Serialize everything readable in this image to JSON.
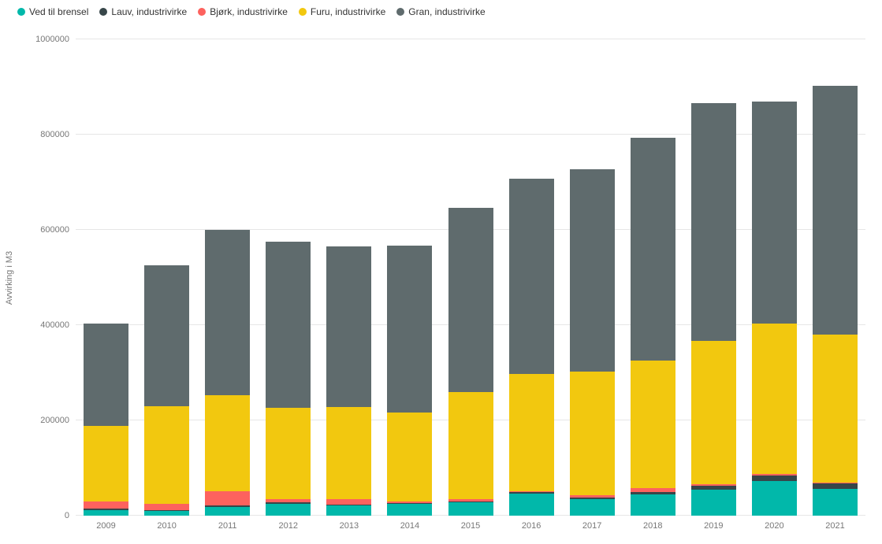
{
  "chart_data": {
    "type": "bar",
    "stacked": true,
    "title": "",
    "xlabel": "",
    "ylabel": "Avvirking i M3",
    "ylim": [
      0,
      1000000
    ],
    "yticks": [
      0,
      200000,
      400000,
      600000,
      800000,
      1000000
    ],
    "grid": true,
    "legend_position": "top-left",
    "categories": [
      "2009",
      "2010",
      "2011",
      "2012",
      "2013",
      "2014",
      "2015",
      "2016",
      "2017",
      "2018",
      "2019",
      "2020",
      "2021"
    ],
    "series": [
      {
        "name": "Ved til brensel",
        "color": "#01B8AA",
        "values": [
          12000,
          10000,
          18000,
          25000,
          22000,
          25000,
          28000,
          46000,
          35000,
          45000,
          55000,
          72000,
          57000
        ]
      },
      {
        "name": "Lauv, industrivirke",
        "color": "#374649",
        "values": [
          3000,
          2000,
          3000,
          3000,
          2000,
          2000,
          2000,
          3000,
          3000,
          5000,
          8000,
          12000,
          10000
        ]
      },
      {
        "name": "Bjørk, industrivirke",
        "color": "#FD625E",
        "values": [
          15000,
          13000,
          30000,
          7000,
          10000,
          3000,
          4000,
          3000,
          5000,
          8000,
          3000,
          4000,
          3000
        ]
      },
      {
        "name": "Furu, industrivirke",
        "color": "#F2C80F",
        "values": [
          158000,
          205000,
          202000,
          191000,
          194000,
          187000,
          226000,
          246000,
          259000,
          267000,
          301000,
          315000,
          310000
        ]
      },
      {
        "name": "Gran, industrivirke",
        "color": "#5F6B6D",
        "values": [
          215000,
          295000,
          347000,
          349000,
          337000,
          350000,
          387000,
          410000,
          425000,
          468000,
          499000,
          466000,
          523000
        ]
      }
    ]
  }
}
